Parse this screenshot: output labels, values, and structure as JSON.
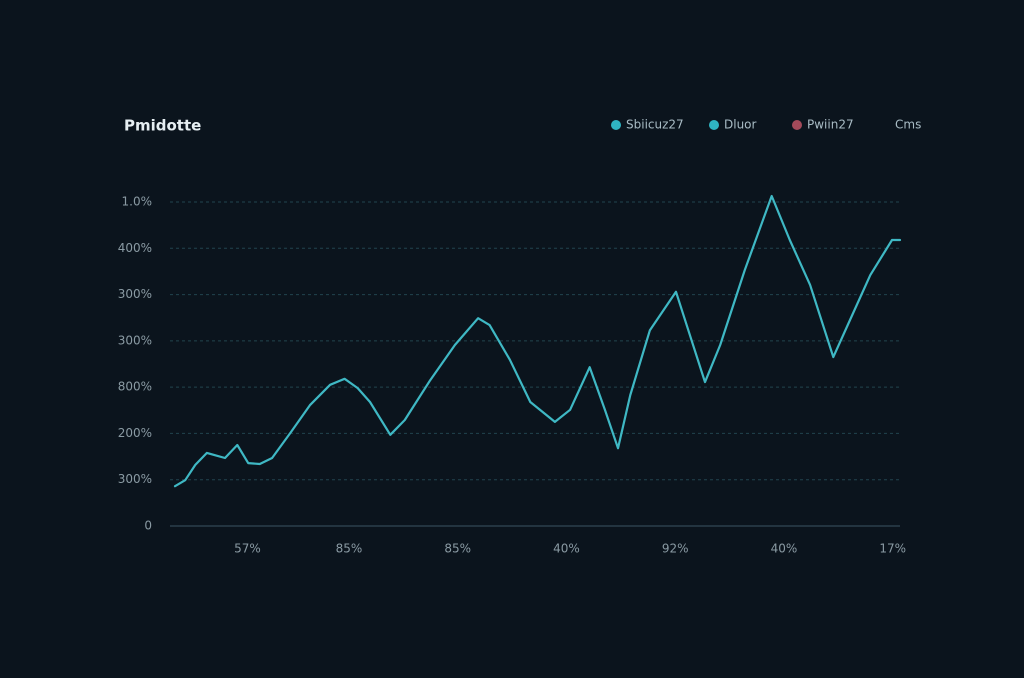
{
  "chart_data": {
    "type": "line",
    "title": "Pmidotte",
    "legend": [
      {
        "name": "Sbiicuz27",
        "color": "#2fb4c2"
      },
      {
        "name": "Dluor",
        "color": "#2fb4c2"
      },
      {
        "name": "Pwiin27",
        "color": "#a34a5a"
      },
      {
        "name": "Cms"
      }
    ],
    "xlim": [
      0,
      100
    ],
    "xticks": [
      {
        "value": 10,
        "label": "57%"
      },
      {
        "value": 24,
        "label": "85%"
      },
      {
        "value": 39,
        "label": "85%"
      },
      {
        "value": 54,
        "label": "40%"
      },
      {
        "value": 69,
        "label": "92%"
      },
      {
        "value": 84,
        "label": "40%"
      },
      {
        "value": 99,
        "label": "17%"
      }
    ],
    "ylim": [
      0,
      700
    ],
    "yticks": [
      0,
      {
        "value": 100,
        "label": "300%"
      },
      {
        "value": 200,
        "label": "200%"
      },
      {
        "value": 300,
        "label": "800%"
      },
      {
        "value": 400,
        "label": "300%"
      },
      {
        "value": 500,
        "label": "300%"
      },
      {
        "value": 600,
        "label": "400%"
      },
      {
        "value": 700,
        "label": "1.0%"
      }
    ],
    "grid": true,
    "x": [
      0,
      1.4,
      2.8,
      4.4,
      5.5,
      6.9,
      8.6,
      10.1,
      11.7,
      13.4,
      15.9,
      18.6,
      21.4,
      23.4,
      25.2,
      26.9,
      29.7,
      31.7,
      35.2,
      38.6,
      41.8,
      43.4,
      46.2,
      49.0,
      52.4,
      54.5,
      57.2,
      59.3,
      61.1,
      62.8,
      65.5,
      69.1,
      71.0,
      73.1,
      75.2,
      78.6,
      82.3,
      84.8,
      87.6,
      90.8,
      93.1,
      95.9,
      98.9,
      100
    ],
    "series": [
      {
        "color": "#3fb8c4",
        "values": [
          86,
          99,
          132,
          158,
          153,
          147,
          175,
          136,
          134,
          147,
          201,
          261,
          305,
          318,
          298,
          268,
          197,
          229,
          315,
          391,
          449,
          434,
          359,
          268,
          225,
          251,
          343,
          251,
          168,
          283,
          423,
          506,
          413,
          311,
          391,
          553,
          713,
          618,
          521,
          365,
          445,
          542,
          618,
          618
        ]
      }
    ]
  }
}
